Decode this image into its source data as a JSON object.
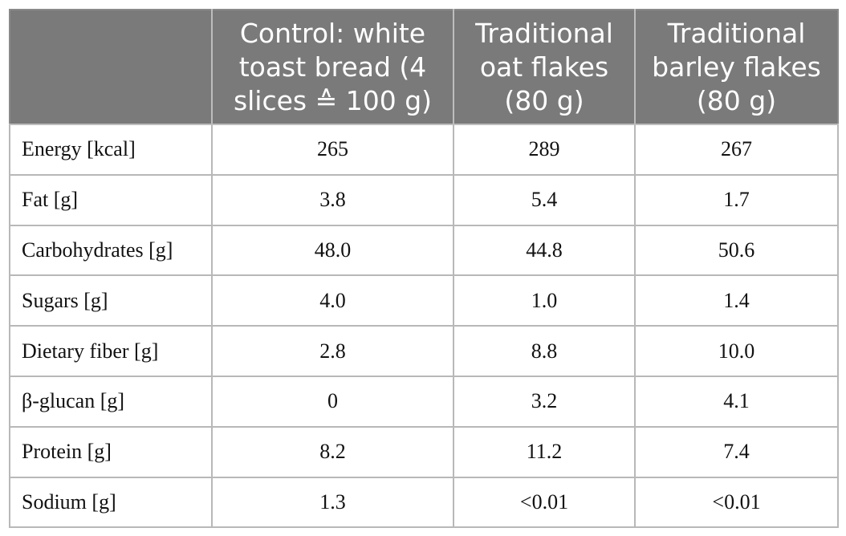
{
  "table": {
    "headers": [
      "",
      "Control: white toast bread (4 slices ≙ 100 g)",
      "Traditional oat flakes (80 g)",
      "Traditional barley flakes (80 g)"
    ],
    "rows": [
      {
        "label": "Energy [kcal]",
        "values": [
          "265",
          "289",
          "267"
        ]
      },
      {
        "label": "Fat [g]",
        "values": [
          "3.8",
          "5.4",
          "1.7"
        ]
      },
      {
        "label": "Carbohydrates [g]",
        "values": [
          "48.0",
          "44.8",
          "50.6"
        ]
      },
      {
        "label": "Sugars [g]",
        "values": [
          "4.0",
          "1.0",
          "1.4"
        ]
      },
      {
        "label": "Dietary fiber [g]",
        "values": [
          "2.8",
          "8.8",
          "10.0"
        ]
      },
      {
        "label": "β-glucan [g]",
        "values": [
          "0",
          "3.2",
          "4.1"
        ]
      },
      {
        "label": "Protein [g]",
        "values": [
          "8.2",
          "11.2",
          "7.4"
        ]
      },
      {
        "label": "Sodium [g]",
        "values": [
          "1.3",
          "<0.01",
          "<0.01"
        ]
      }
    ]
  }
}
